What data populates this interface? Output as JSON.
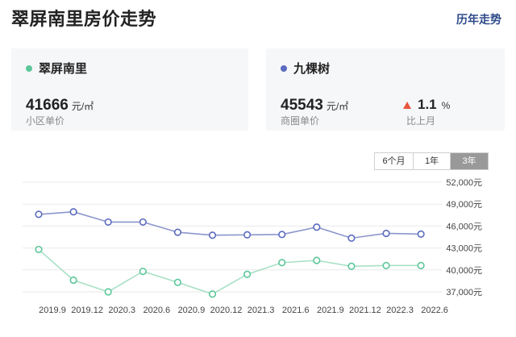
{
  "header": {
    "title": "翠屏南里房价走势",
    "history_link": "历年走势"
  },
  "cards": [
    {
      "name": "翠屏南里",
      "dot_color": "#5dc79a",
      "price": "41666",
      "unit": "元/㎡",
      "desc": "小区单价"
    },
    {
      "name": "九棵树",
      "dot_color": "#5b6bbf",
      "price": "45543",
      "unit": "元/㎡",
      "desc": "商圈单价",
      "change": {
        "direction": "up",
        "value": "1.1",
        "unit": "%",
        "desc": "比上月",
        "color": "#e8553e"
      }
    }
  ],
  "range_tabs": {
    "options": [
      "6个月",
      "1年",
      "3年"
    ],
    "active": "3年"
  },
  "chart_data": {
    "type": "line",
    "categories": [
      "2019.9",
      "2019.12",
      "2020.3",
      "2020.6",
      "2020.9",
      "2020.12",
      "2021.3",
      "2021.6",
      "2021.9",
      "2021.12",
      "2022.3",
      "2022.6"
    ],
    "series": [
      {
        "color": "#8c96cc",
        "marker_color": "#5b6bbf",
        "values": [
          47600,
          47950,
          46550,
          46550,
          45150,
          44750,
          44800,
          44850,
          45850,
          44350,
          45000,
          44900
        ]
      },
      {
        "color": "#a8e0c6",
        "marker_color": "#5dc79a",
        "values": [
          42800,
          38600,
          37000,
          39800,
          38300,
          36700,
          39400,
          41000,
          41300,
          40500,
          40600,
          40600
        ]
      }
    ],
    "y_ticks": [
      "52,000元",
      "49,000元",
      "46,000元",
      "43,000元",
      "40,000元",
      "37,000元"
    ],
    "y_tick_values": [
      52000,
      49000,
      46000,
      43000,
      40000,
      37000
    ],
    "ylim": [
      37000,
      52000
    ],
    "grid": true
  }
}
